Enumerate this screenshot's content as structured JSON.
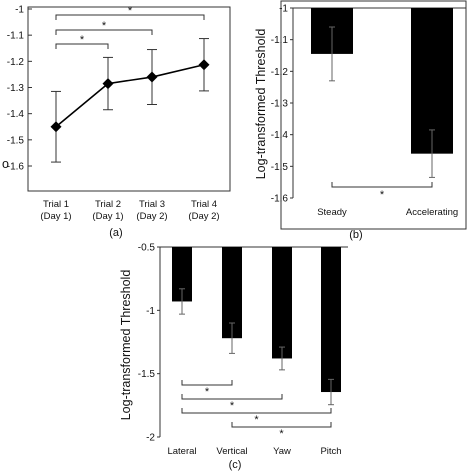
{
  "chart_data": [
    {
      "type": "line",
      "panel_label": "(a)",
      "categories": [
        "Trial 1 (Day 1)",
        "Trial 2 (Day 1)",
        "Trial 3 (Day 2)",
        "Trial 4 (Day 2)"
      ],
      "category_lines": [
        [
          "Trial 1",
          "(Day 1)"
        ],
        [
          "Trial 2",
          "(Day 1)"
        ],
        [
          "Trial 3",
          "(Day 2)"
        ],
        [
          "Trial 4",
          "(Day 2)"
        ]
      ],
      "values": [
        -1.45,
        -1.285,
        -1.26,
        -1.213
      ],
      "errors": [
        0.135,
        0.1,
        0.105,
        0.1
      ],
      "ylim": [
        -1.6,
        -1.0
      ],
      "yticks": [
        "-1",
        "-1.1",
        "-1.2",
        "-1.3",
        "-1.4",
        "-1.5",
        "-1.6"
      ],
      "ylabel_partial": "o",
      "marker": "diamond",
      "color": "#000000",
      "significance": [
        {
          "from": 0,
          "to": 1,
          "label": "*"
        },
        {
          "from": 0,
          "to": 2,
          "label": "*"
        },
        {
          "from": 0,
          "to": 3,
          "label": "*"
        }
      ]
    },
    {
      "type": "bar",
      "panel_label": "(b)",
      "categories": [
        "Steady",
        "Accelerating"
      ],
      "values": [
        -1.145,
        -1.46
      ],
      "errors": [
        0.085,
        0.075
      ],
      "ylim": [
        -1.6,
        -1.0
      ],
      "yticks": [
        "-1",
        "-1.1",
        "-1.2",
        "-1.3",
        "-1.4",
        "-1.5",
        "-1.6"
      ],
      "ylabel": "Log-transformed Threshold",
      "color": "#000000",
      "significance": [
        {
          "from": 0,
          "to": 1,
          "label": "*"
        }
      ]
    },
    {
      "type": "bar",
      "panel_label": "(c)",
      "categories": [
        "Lateral",
        "Vertical",
        "Yaw",
        "Pitch"
      ],
      "values": [
        -0.93,
        -1.22,
        -1.38,
        -1.645
      ],
      "errors": [
        0.1,
        0.12,
        0.09,
        0.1
      ],
      "ylim": [
        -2.0,
        -0.5
      ],
      "yticks": [
        "-0.5",
        "-1",
        "-1.5",
        "-2"
      ],
      "ylabel": "Log-transformed Threshold",
      "color": "#000000",
      "significance": [
        {
          "from": 0,
          "to": 1,
          "label": "*"
        },
        {
          "from": 0,
          "to": 2,
          "label": "*"
        },
        {
          "from": 0,
          "to": 3,
          "label": "*"
        },
        {
          "from": 1,
          "to": 3,
          "label": "*"
        }
      ]
    }
  ]
}
